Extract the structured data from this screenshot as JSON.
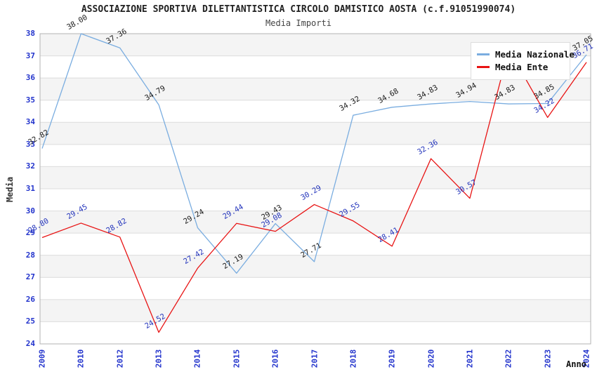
{
  "header": {
    "title": "ASSOCIAZIONE SPORTIVA DILETTANTISTICA CIRCOLO DAMISTICO AOSTA (c.f.91051990074)",
    "subtitle": "Media Importi"
  },
  "legend": {
    "items": [
      {
        "label": "Media Nazionale",
        "color": "#7aade0"
      },
      {
        "label": "Media Ente",
        "color": "#e81414"
      }
    ]
  },
  "chart_data": {
    "type": "line",
    "title": "ASSOCIAZIONE SPORTIVA DILETTANTISTICA CIRCOLO DAMISTICO AOSTA (c.f.91051990074)",
    "subtitle": "Media Importi",
    "xlabel": "Anno",
    "ylabel": "Media",
    "ylim": [
      24,
      38
    ],
    "ytick_step": 1,
    "grid": true,
    "legend_position": "top-right",
    "band_colors": [
      "#f4f4f4",
      "#ffffff"
    ],
    "gridline_color": "#dcdcdc",
    "border_color": "#b3b3b3",
    "tick_color": "#2233cc",
    "categories": [
      "2009",
      "2010",
      "2012",
      "2013",
      "2014",
      "2015",
      "2016",
      "2017",
      "2018",
      "2019",
      "2020",
      "2021",
      "2022",
      "2023",
      "2024"
    ],
    "series": [
      {
        "name": "Media Nazionale",
        "color": "#7aade0",
        "label_color": "#1a1a1a",
        "values": [
          32.82,
          38.0,
          37.36,
          34.79,
          29.24,
          27.19,
          29.43,
          27.71,
          34.32,
          34.68,
          34.83,
          34.94,
          34.83,
          34.85,
          37.05
        ],
        "labels": [
          "32.82",
          "38.00",
          "37.36",
          "34.79",
          "29.24",
          "27.19",
          "29.43",
          "27.71",
          "34.32",
          "34.68",
          "34.83",
          "34.94",
          "34.83",
          "34.85",
          "37.05"
        ]
      },
      {
        "name": "Media Ente",
        "color": "#e81414",
        "label_color": "#2233bb",
        "values": [
          28.8,
          29.45,
          28.82,
          24.52,
          27.42,
          29.44,
          29.08,
          30.29,
          29.55,
          28.41,
          32.36,
          30.57,
          37.3,
          34.22,
          36.71
        ],
        "labels": [
          "28.80",
          "29.45",
          "28.82",
          "24.52",
          "27.42",
          "29.44",
          "29.08",
          "30.29",
          "29.55",
          "28.41",
          "32.36",
          "30.57",
          "",
          "34.22",
          "36.71"
        ]
      }
    ]
  }
}
